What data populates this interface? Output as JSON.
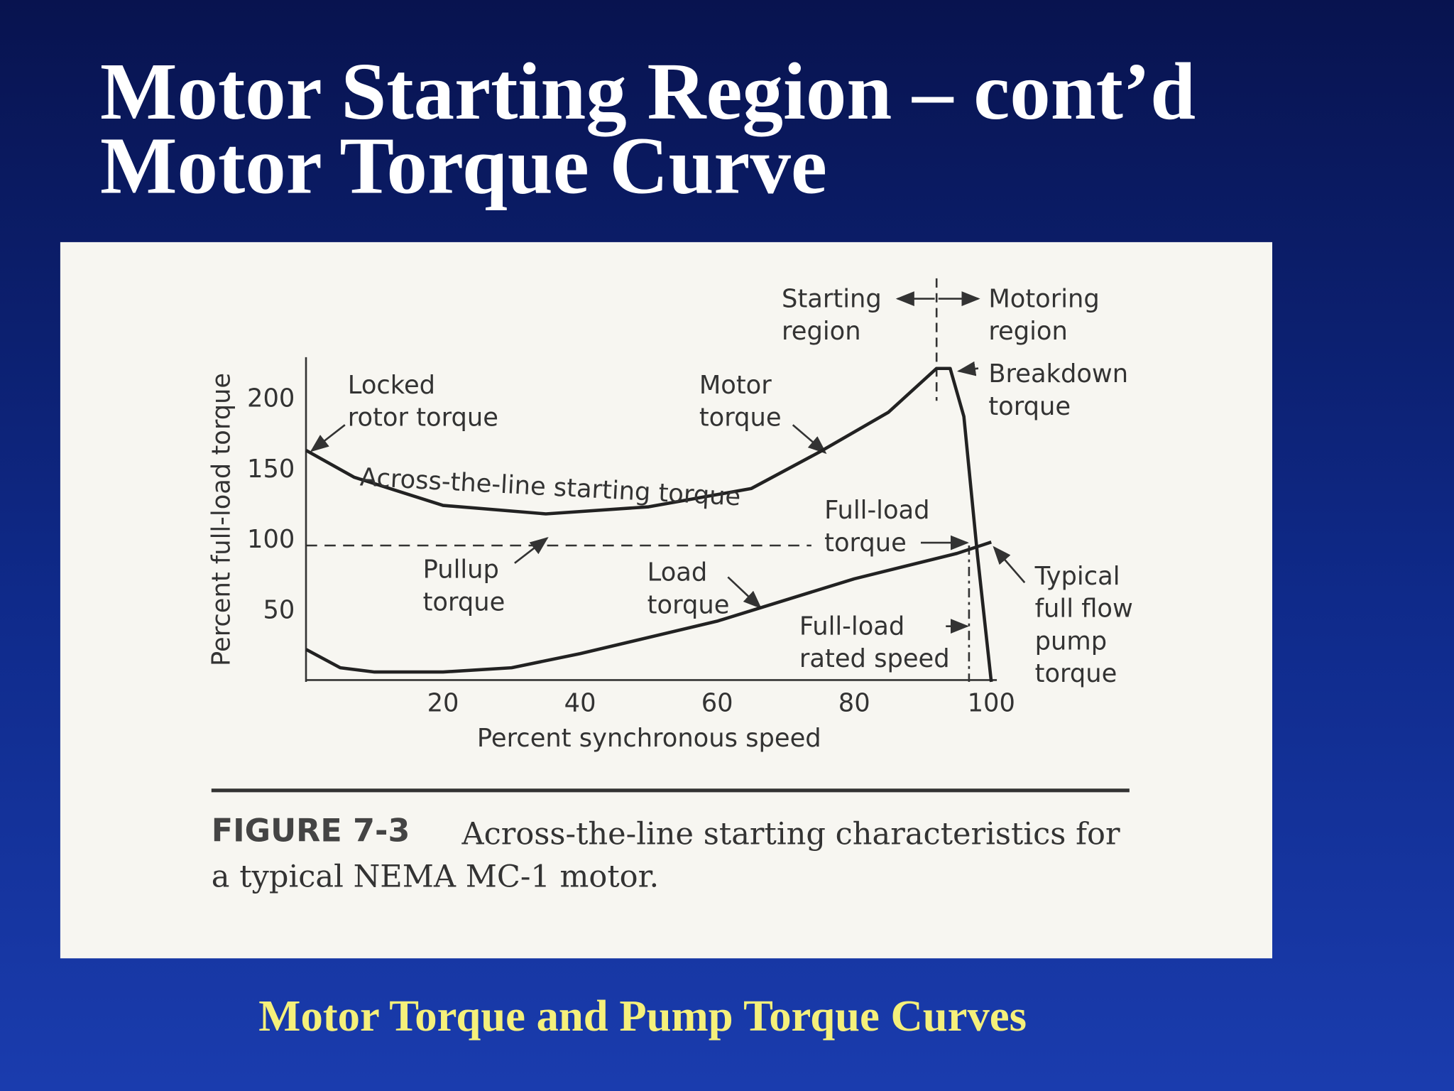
{
  "slide": {
    "title_lines": [
      "Motor Starting Region – cont’d",
      "Motor Torque Curve"
    ],
    "footer": "Motor Torque and Pump Torque Curves",
    "figure_label": "FIGURE 7-3",
    "figure_caption": "Across-the-line starting characteristics for\na typical NEMA MC-1 motor."
  },
  "chart_data": {
    "type": "line",
    "xlabel": "Percent synchronous speed",
    "ylabel": "Percent full-load torque",
    "xlim": [
      0,
      100
    ],
    "ylim": [
      0,
      230
    ],
    "xticks": [
      20,
      40,
      60,
      80,
      100
    ],
    "yticks": [
      50,
      100,
      150,
      200
    ],
    "grid": false,
    "series": [
      {
        "name": "Motor\ntorque",
        "color": "#222222",
        "x": [
          0,
          7,
          20,
          35,
          50,
          65,
          75,
          85,
          92,
          94,
          96,
          98,
          100
        ],
        "values": [
          164,
          145,
          125,
          119,
          124,
          137,
          163,
          191,
          222,
          222,
          188,
          89,
          0
        ]
      },
      {
        "name": "Load\ntorque",
        "color": "#222222",
        "x": [
          0,
          5,
          10,
          20,
          30,
          40,
          60,
          80,
          95,
          100
        ],
        "values": [
          23,
          10,
          7,
          7,
          10,
          20,
          43,
          73,
          91,
          99
        ]
      }
    ],
    "annotations": [
      "Starting\nregion",
      "Motoring\nregion",
      "Locked\nrotor torque",
      "Breakdown\ntorque",
      "Across-the-line starting torque",
      "Full-load\ntorque",
      "Pullup\ntorque",
      "Full-load\nrated speed",
      "Typical\nfull flow\npump\ntorque"
    ]
  }
}
